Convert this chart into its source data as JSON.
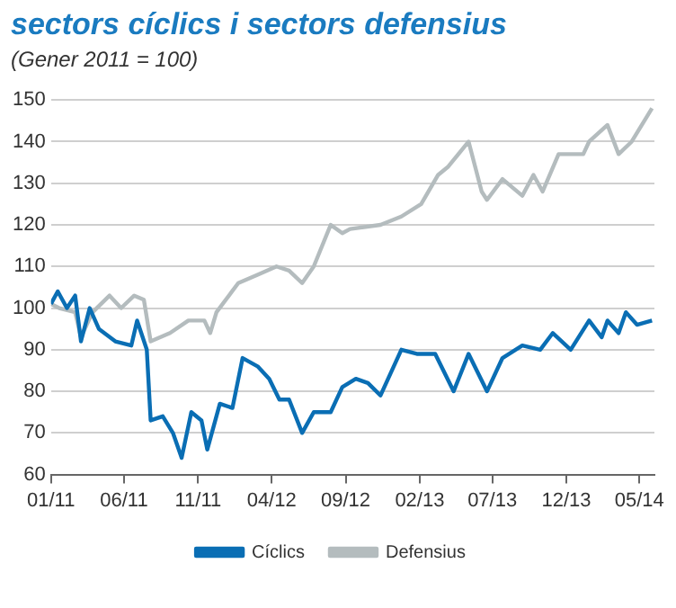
{
  "chart_data": {
    "type": "line",
    "title": "sectors cíclics i sectors defensius",
    "subtitle": "(Gener 2011 = 100)",
    "xlim": [
      "2011-01-01",
      "2014-06-01"
    ],
    "xticks": [
      {
        "value": "2011-01",
        "label": "01/11"
      },
      {
        "value": "2011-06",
        "label": "06/11"
      },
      {
        "value": "2011-11",
        "label": "11/11"
      },
      {
        "value": "2012-04",
        "label": "04/12"
      },
      {
        "value": "2012-09",
        "label": "09/12"
      },
      {
        "value": "2013-02",
        "label": "02/13"
      },
      {
        "value": "2013-07",
        "label": "07/13"
      },
      {
        "value": "2013-12",
        "label": "12/13"
      },
      {
        "value": "2014-05",
        "label": "05/14"
      }
    ],
    "ylim": [
      60,
      150
    ],
    "yticks": [
      60,
      70,
      80,
      90,
      100,
      110,
      120,
      130,
      140,
      150
    ],
    "grid": "y",
    "legend": "bottom",
    "marker": "none",
    "line_style": "solid",
    "series": [
      {
        "name": "Cíclics",
        "color": "#0a6eb4",
        "x": [
          "2011-01-01",
          "2011-01-15",
          "2011-02-03",
          "2011-02-20",
          "2011-03-04",
          "2011-03-22",
          "2011-04-10",
          "2011-05-14",
          "2011-06-16",
          "2011-06-28",
          "2011-07-18",
          "2011-07-26",
          "2011-08-20",
          "2011-09-10",
          "2011-09-28",
          "2011-10-18",
          "2011-11-08",
          "2011-11-20",
          "2011-12-16",
          "2012-01-11",
          "2012-02-01",
          "2012-03-03",
          "2012-03-27",
          "2012-04-17",
          "2012-05-07",
          "2012-06-03",
          "2012-06-27",
          "2012-08-01",
          "2012-08-25",
          "2012-09-22",
          "2012-10-17",
          "2012-11-12",
          "2012-12-25",
          "2013-01-26",
          "2013-03-05",
          "2013-04-12",
          "2013-05-13",
          "2013-06-20",
          "2013-07-22",
          "2013-09-01",
          "2013-10-08",
          "2013-11-03",
          "2013-12-10",
          "2014-01-17",
          "2014-02-12",
          "2014-02-24",
          "2014-03-19",
          "2014-04-03",
          "2014-04-26",
          "2014-05-27"
        ],
        "values": [
          101,
          104,
          100,
          103,
          92,
          100,
          95,
          92,
          91,
          97,
          90,
          73,
          74,
          70,
          64,
          75,
          73,
          66,
          77,
          76,
          88,
          86,
          83,
          78,
          78,
          70,
          75,
          75,
          81,
          83,
          82,
          79,
          90,
          89,
          89,
          80,
          89,
          80,
          88,
          91,
          90,
          94,
          90,
          97,
          93,
          97,
          94,
          99,
          96,
          97
        ]
      },
      {
        "name": "Defensius",
        "color": "#b4bcbe",
        "x": [
          "2011-01-01",
          "2011-01-18",
          "2011-02-20",
          "2011-03-04",
          "2011-03-28",
          "2011-05-02",
          "2011-05-26",
          "2011-06-22",
          "2011-07-12",
          "2011-07-26",
          "2011-09-04",
          "2011-10-12",
          "2011-11-14",
          "2011-11-26",
          "2011-12-09",
          "2012-01-23",
          "2012-03-03",
          "2012-04-11",
          "2012-05-07",
          "2012-06-03",
          "2012-06-27",
          "2012-08-01",
          "2012-08-25",
          "2012-09-10",
          "2012-11-12",
          "2012-12-25",
          "2013-02-04",
          "2013-03-11",
          "2013-04-01",
          "2013-05-13",
          "2013-06-09",
          "2013-06-20",
          "2013-07-22",
          "2013-09-01",
          "2013-09-24",
          "2013-10-13",
          "2013-11-15",
          "2014-01-05",
          "2014-01-17",
          "2014-02-24",
          "2014-03-19",
          "2014-04-15",
          "2014-05-27"
        ],
        "values": [
          101,
          100,
          99,
          93,
          99,
          103,
          100,
          103,
          102,
          92,
          94,
          97,
          97,
          94,
          99,
          106,
          108,
          110,
          109,
          106,
          110,
          120,
          118,
          119,
          120,
          122,
          125,
          132,
          134,
          140,
          128,
          126,
          131,
          127,
          132,
          128,
          137,
          137,
          140,
          144,
          137,
          140,
          148
        ]
      }
    ]
  }
}
